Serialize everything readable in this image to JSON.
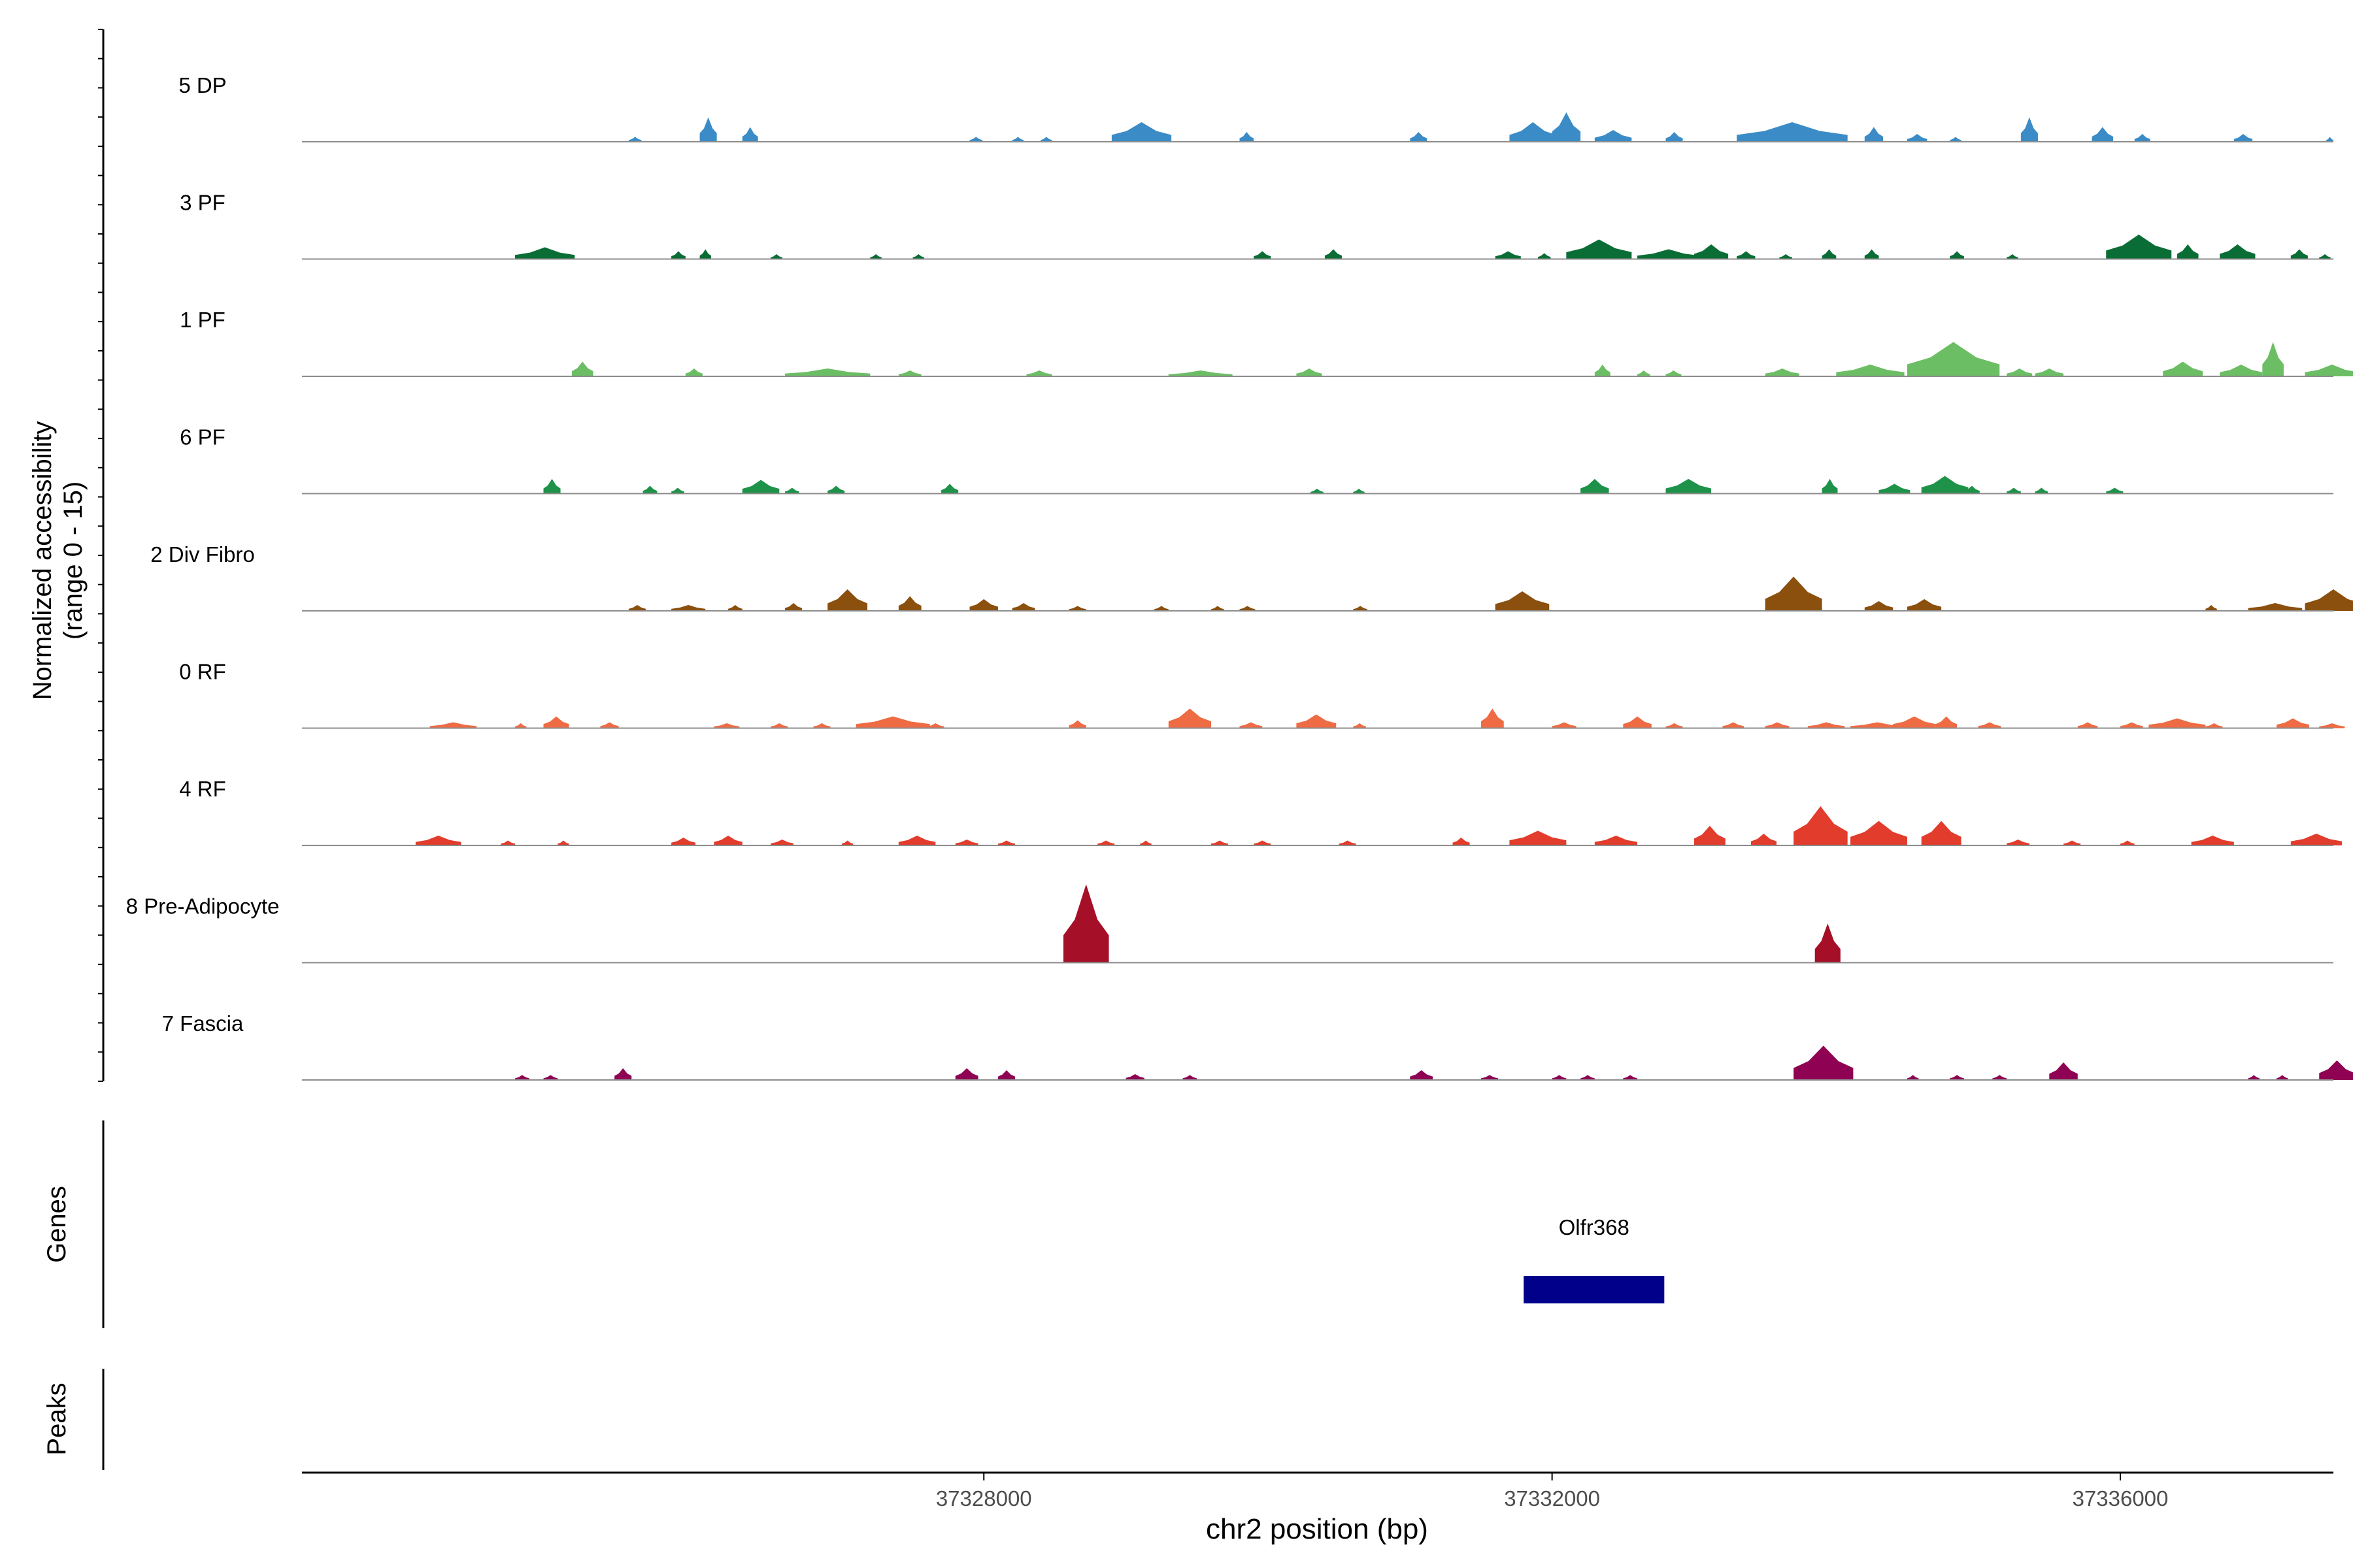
{
  "chart_data": {
    "type": "coverage",
    "y_axis_label_line1": "Normalized accessibility",
    "y_axis_label_line2": "(range 0 - 15)",
    "y_range": [
      0,
      15
    ],
    "x_axis_label": "chr2 position (bp)",
    "x_range": [
      37323200,
      37337500
    ],
    "x_ticks": [
      37328000,
      37332000,
      37336000
    ],
    "x_tick_labels": [
      "37328000",
      "37332000",
      "37336000"
    ],
    "tracks": [
      {
        "name": "5 DP",
        "color": "#3B8CC6",
        "peaks": [
          [
            37325500,
            90,
            5
          ],
          [
            37326000,
            120,
            25
          ],
          [
            37326300,
            110,
            15
          ],
          [
            37327900,
            90,
            5
          ],
          [
            37328200,
            80,
            5
          ],
          [
            37328400,
            80,
            5
          ],
          [
            37328900,
            420,
            20
          ],
          [
            37329800,
            100,
            10
          ],
          [
            37331000,
            120,
            10
          ],
          [
            37331700,
            330,
            20
          ],
          [
            37332000,
            200,
            30
          ],
          [
            37332300,
            260,
            12
          ],
          [
            37332800,
            120,
            10
          ],
          [
            37333300,
            780,
            20
          ],
          [
            37334200,
            130,
            15
          ],
          [
            37334500,
            140,
            8
          ],
          [
            37334800,
            80,
            5
          ],
          [
            37335300,
            120,
            25
          ],
          [
            37335800,
            150,
            15
          ],
          [
            37336100,
            110,
            8
          ],
          [
            37336800,
            130,
            8
          ],
          [
            37337450,
            50,
            5
          ]
        ]
      },
      {
        "name": "3 PF",
        "color": "#0A6D35",
        "peaks": [
          [
            37324700,
            420,
            12
          ],
          [
            37325800,
            100,
            8
          ],
          [
            37326000,
            80,
            10
          ],
          [
            37326500,
            80,
            5
          ],
          [
            37327200,
            80,
            5
          ],
          [
            37327500,
            80,
            5
          ],
          [
            37329900,
            120,
            8
          ],
          [
            37330400,
            120,
            10
          ],
          [
            37331600,
            180,
            8
          ],
          [
            37331900,
            90,
            6
          ],
          [
            37332100,
            460,
            20
          ],
          [
            37332600,
            440,
            10
          ],
          [
            37333000,
            240,
            15
          ],
          [
            37333300,
            130,
            8
          ],
          [
            37333600,
            90,
            5
          ],
          [
            37333900,
            100,
            10
          ],
          [
            37334200,
            100,
            10
          ],
          [
            37334800,
            100,
            8
          ],
          [
            37335200,
            80,
            5
          ],
          [
            37335900,
            460,
            25
          ],
          [
            37336400,
            150,
            15
          ],
          [
            37336700,
            250,
            15
          ],
          [
            37337200,
            120,
            10
          ],
          [
            37337400,
            80,
            5
          ]
        ]
      },
      {
        "name": "1 PF",
        "color": "#6CBE64",
        "peaks": [
          [
            37325100,
            150,
            15
          ],
          [
            37325900,
            120,
            8
          ],
          [
            37326600,
            600,
            8
          ],
          [
            37327400,
            160,
            6
          ],
          [
            37328300,
            180,
            6
          ],
          [
            37329300,
            450,
            6
          ],
          [
            37330200,
            180,
            8
          ],
          [
            37332300,
            110,
            12
          ],
          [
            37332600,
            90,
            6
          ],
          [
            37332800,
            110,
            6
          ],
          [
            37333500,
            240,
            8
          ],
          [
            37334000,
            480,
            12
          ],
          [
            37334500,
            650,
            35
          ],
          [
            37335200,
            180,
            8
          ],
          [
            37335400,
            200,
            8
          ],
          [
            37336300,
            280,
            15
          ],
          [
            37336700,
            300,
            12
          ],
          [
            37337000,
            150,
            35
          ],
          [
            37337300,
            380,
            12
          ]
        ]
      },
      {
        "name": "6 PF",
        "color": "#1E9249",
        "peaks": [
          [
            37324900,
            120,
            15
          ],
          [
            37325600,
            100,
            8
          ],
          [
            37325800,
            90,
            6
          ],
          [
            37326300,
            260,
            14
          ],
          [
            37326600,
            100,
            6
          ],
          [
            37326900,
            120,
            8
          ],
          [
            37327700,
            120,
            10
          ],
          [
            37330300,
            90,
            5
          ],
          [
            37330600,
            80,
            5
          ],
          [
            37332200,
            200,
            15
          ],
          [
            37332800,
            320,
            15
          ],
          [
            37333900,
            110,
            15
          ],
          [
            37334300,
            220,
            10
          ],
          [
            37334600,
            330,
            18
          ],
          [
            37334900,
            110,
            8
          ],
          [
            37335200,
            100,
            6
          ],
          [
            37335400,
            90,
            6
          ],
          [
            37335900,
            120,
            6
          ]
        ]
      },
      {
        "name": "2 Div Fibro",
        "color": "#8B4F0E",
        "peaks": [
          [
            37325500,
            120,
            6
          ],
          [
            37325800,
            240,
            6
          ],
          [
            37326200,
            100,
            6
          ],
          [
            37326600,
            120,
            8
          ],
          [
            37326900,
            280,
            22
          ],
          [
            37327400,
            160,
            15
          ],
          [
            37327900,
            200,
            12
          ],
          [
            37328200,
            160,
            8
          ],
          [
            37328600,
            120,
            5
          ],
          [
            37329200,
            100,
            5
          ],
          [
            37329600,
            90,
            5
          ],
          [
            37329800,
            110,
            5
          ],
          [
            37330600,
            100,
            5
          ],
          [
            37331600,
            380,
            20
          ],
          [
            37333500,
            400,
            35
          ],
          [
            37334200,
            200,
            10
          ],
          [
            37334500,
            240,
            12
          ],
          [
            37336600,
            80,
            6
          ],
          [
            37336900,
            380,
            8
          ],
          [
            37337300,
            400,
            22
          ]
        ]
      },
      {
        "name": "0 RF",
        "color": "#EE6B43",
        "peaks": [
          [
            37324100,
            330,
            6
          ],
          [
            37324700,
            80,
            5
          ],
          [
            37324900,
            180,
            12
          ],
          [
            37325300,
            130,
            6
          ],
          [
            37326100,
            180,
            5
          ],
          [
            37326500,
            120,
            5
          ],
          [
            37326800,
            120,
            5
          ],
          [
            37327100,
            520,
            12
          ],
          [
            37327600,
            120,
            5
          ],
          [
            37328600,
            120,
            8
          ],
          [
            37329300,
            300,
            20
          ],
          [
            37329800,
            160,
            6
          ],
          [
            37330200,
            280,
            14
          ],
          [
            37330600,
            90,
            5
          ],
          [
            37331500,
            160,
            20
          ],
          [
            37332000,
            170,
            6
          ],
          [
            37332500,
            200,
            12
          ],
          [
            37332800,
            120,
            5
          ],
          [
            37333200,
            150,
            6
          ],
          [
            37333500,
            170,
            6
          ],
          [
            37333800,
            260,
            6
          ],
          [
            37334100,
            380,
            6
          ],
          [
            37334400,
            300,
            12
          ],
          [
            37334700,
            150,
            12
          ],
          [
            37335000,
            160,
            6
          ],
          [
            37335700,
            140,
            6
          ],
          [
            37336000,
            160,
            6
          ],
          [
            37336200,
            400,
            10
          ],
          [
            37336600,
            120,
            5
          ],
          [
            37337100,
            230,
            10
          ],
          [
            37337400,
            180,
            5
          ]
        ]
      },
      {
        "name": "4 RF",
        "color": "#E23C2C",
        "peaks": [
          [
            37324000,
            320,
            10
          ],
          [
            37324600,
            100,
            5
          ],
          [
            37325000,
            80,
            5
          ],
          [
            37325800,
            170,
            8
          ],
          [
            37326100,
            200,
            10
          ],
          [
            37326500,
            160,
            6
          ],
          [
            37327000,
            80,
            5
          ],
          [
            37327400,
            260,
            10
          ],
          [
            37327800,
            160,
            6
          ],
          [
            37328100,
            120,
            5
          ],
          [
            37328800,
            120,
            5
          ],
          [
            37329100,
            80,
            5
          ],
          [
            37329600,
            120,
            5
          ],
          [
            37329900,
            120,
            5
          ],
          [
            37330500,
            120,
            5
          ],
          [
            37331300,
            120,
            8
          ],
          [
            37331700,
            400,
            15
          ],
          [
            37332300,
            300,
            10
          ],
          [
            37333000,
            220,
            20
          ],
          [
            37333400,
            180,
            12
          ],
          [
            37333700,
            380,
            40
          ],
          [
            37334100,
            400,
            25
          ],
          [
            37334600,
            280,
            25
          ],
          [
            37335200,
            160,
            6
          ],
          [
            37335600,
            120,
            5
          ],
          [
            37336000,
            100,
            5
          ],
          [
            37336500,
            300,
            10
          ],
          [
            37337200,
            360,
            12
          ]
        ]
      },
      {
        "name": "8 Pre-Adipocyte",
        "color": "#A50F28",
        "peaks": [
          [
            37328560,
            320,
            80
          ],
          [
            37333850,
            180,
            40
          ]
        ]
      },
      {
        "name": "7 Fascia",
        "color": "#8E0153",
        "peaks": [
          [
            37324700,
            100,
            5
          ],
          [
            37324900,
            100,
            5
          ],
          [
            37325400,
            120,
            12
          ],
          [
            37327800,
            160,
            12
          ],
          [
            37328100,
            120,
            10
          ],
          [
            37329000,
            130,
            6
          ],
          [
            37329400,
            100,
            5
          ],
          [
            37331000,
            160,
            10
          ],
          [
            37331500,
            120,
            5
          ],
          [
            37332000,
            100,
            5
          ],
          [
            37332200,
            100,
            5
          ],
          [
            37332500,
            100,
            5
          ],
          [
            37333700,
            420,
            35
          ],
          [
            37334000,
            100,
            10
          ],
          [
            37334500,
            80,
            5
          ],
          [
            37334800,
            100,
            5
          ],
          [
            37335100,
            100,
            5
          ],
          [
            37335500,
            200,
            18
          ],
          [
            37336900,
            80,
            5
          ],
          [
            37337100,
            80,
            5
          ],
          [
            37337400,
            250,
            20
          ]
        ]
      }
    ],
    "genes_track_label": "Genes",
    "genes": [
      {
        "name": "Olfr368",
        "start": 37331800,
        "end": 37332790,
        "color": "#00008B"
      }
    ],
    "peaks_track_label": "Peaks",
    "peak_regions": []
  }
}
